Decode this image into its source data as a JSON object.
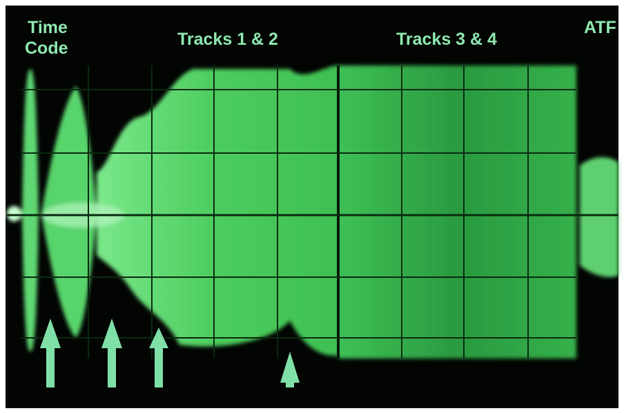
{
  "labels": {
    "time_code": [
      "Time",
      "Code"
    ],
    "tracks_1_2": "Tracks 1 & 2",
    "tracks_3_4": "Tracks 3 & 4",
    "atf": "ATF"
  }
}
